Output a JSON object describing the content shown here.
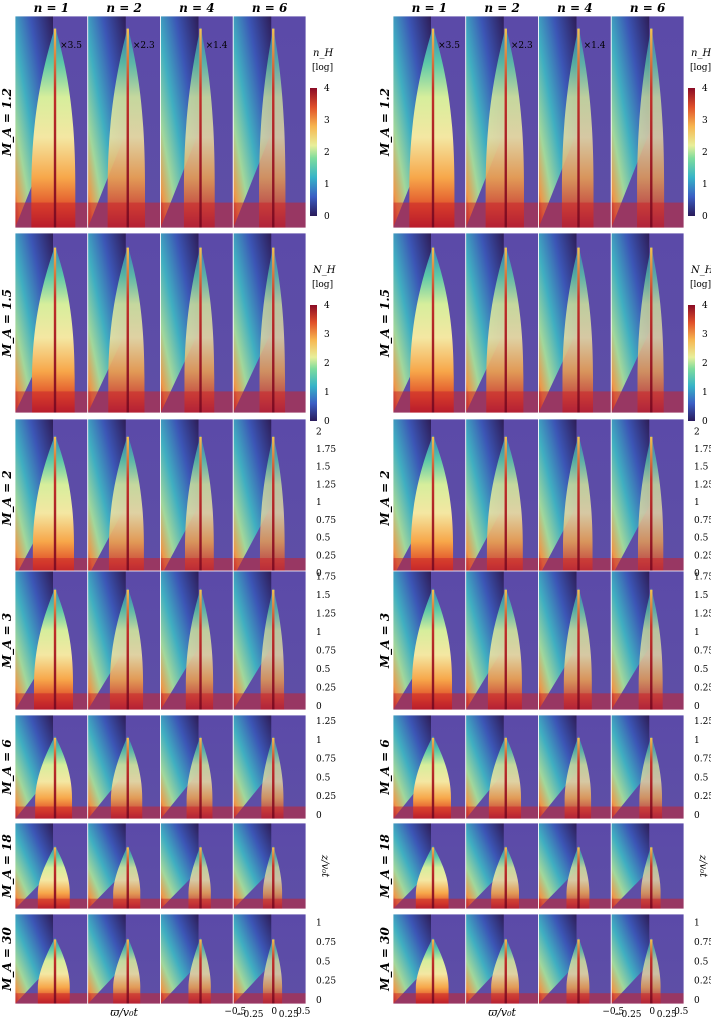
{
  "columns": [
    "n = 1",
    "n = 2",
    "n = 4",
    "n = 6"
  ],
  "rows": [
    "M_A = 1.2",
    "M_A = 1.5",
    "M_A = 2",
    "M_A = 3",
    "M_A = 6",
    "M_A = 18",
    "M_A = 30"
  ],
  "factors": [
    "×3.5",
    "×2.3",
    "×1.4"
  ],
  "colorbars": [
    {
      "label": "n_H",
      "unit": "[log]",
      "ticks": [
        "0",
        "1",
        "2",
        "3",
        "4"
      ]
    },
    {
      "label": "N_H",
      "unit": "[log]",
      "ticks": [
        "0",
        "1",
        "2",
        "3",
        "4"
      ]
    }
  ],
  "yticks": [
    [
      "0",
      "0.25",
      "0.5",
      "0.75",
      "1",
      "1.25",
      "1.5",
      "1.75",
      "2"
    ],
    [
      "0",
      "0.25",
      "0.5",
      "0.75",
      "1",
      "1.25",
      "1.5",
      "1.75"
    ],
    [
      "0",
      "0.25",
      "0.5",
      "0.75",
      "1",
      "1.25"
    ],
    [
      "0",
      "0.25",
      "0.5",
      "0.75",
      "1"
    ]
  ],
  "ylabel": "z/v₀t",
  "xlabel": "ϖ/v₀t",
  "xticks": [
    "−0.5",
    "−0.25",
    "0",
    "0.25",
    "0.5"
  ]
}
